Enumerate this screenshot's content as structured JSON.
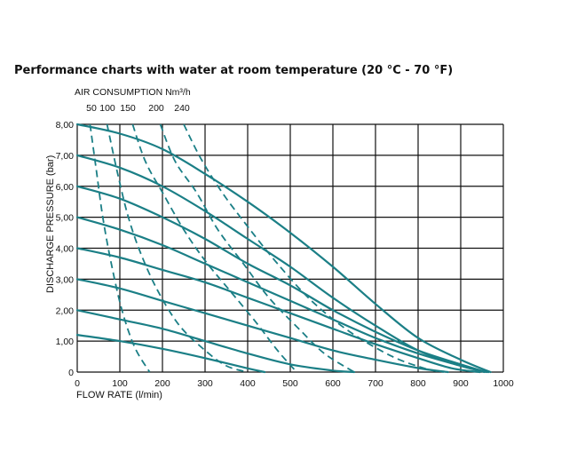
{
  "title": "Performance charts with water at room temperature (20 °C - 70 °F)",
  "colors": {
    "curve": "#1b7f86",
    "grid": "#111111",
    "text": "#111111"
  },
  "chart_data": {
    "type": "line",
    "xlabel": "FLOW RATE (l/min)",
    "ylabel": "DISCHARGE PRESSURE (bar)",
    "xlim": [
      0,
      1000
    ],
    "ylim": [
      0,
      8
    ],
    "x_ticks": [
      "0",
      "100",
      "200",
      "300",
      "400",
      "500",
      "600",
      "700",
      "800",
      "900",
      "1000"
    ],
    "y_ticks": [
      "0",
      "1,00",
      "2,00",
      "3,00",
      "4,00",
      "5,00",
      "6,00",
      "7,00",
      "8,00"
    ],
    "grid": true,
    "air_consumption": {
      "title": "AIR CONSUMPTION Nm³/h",
      "labels": [
        "50",
        "100",
        "150",
        "200",
        "240"
      ]
    },
    "pressure_curves": [
      {
        "values": [
          [
            0,
            8
          ],
          [
            100,
            7.7
          ],
          [
            200,
            7.2
          ],
          [
            300,
            6.4
          ],
          [
            400,
            5.5
          ],
          [
            500,
            4.5
          ],
          [
            600,
            3.4
          ],
          [
            700,
            2.2
          ],
          [
            800,
            1.1
          ],
          [
            900,
            0.4
          ],
          [
            970,
            0
          ]
        ]
      },
      {
        "values": [
          [
            0,
            7
          ],
          [
            100,
            6.6
          ],
          [
            200,
            6.0
          ],
          [
            300,
            5.2
          ],
          [
            400,
            4.3
          ],
          [
            500,
            3.4
          ],
          [
            600,
            2.4
          ],
          [
            700,
            1.5
          ],
          [
            800,
            0.7
          ],
          [
            900,
            0.2
          ],
          [
            965,
            0
          ]
        ]
      },
      {
        "values": [
          [
            0,
            6
          ],
          [
            100,
            5.6
          ],
          [
            200,
            5.0
          ],
          [
            300,
            4.3
          ],
          [
            400,
            3.5
          ],
          [
            500,
            2.8
          ],
          [
            600,
            2.0
          ],
          [
            700,
            1.3
          ],
          [
            800,
            0.7
          ],
          [
            900,
            0.25
          ],
          [
            960,
            0
          ]
        ]
      },
      {
        "values": [
          [
            0,
            5
          ],
          [
            100,
            4.6
          ],
          [
            200,
            4.1
          ],
          [
            300,
            3.5
          ],
          [
            400,
            2.9
          ],
          [
            500,
            2.3
          ],
          [
            600,
            1.7
          ],
          [
            700,
            1.1
          ],
          [
            800,
            0.6
          ],
          [
            900,
            0.2
          ],
          [
            955,
            0
          ]
        ]
      },
      {
        "values": [
          [
            0,
            4
          ],
          [
            100,
            3.7
          ],
          [
            200,
            3.3
          ],
          [
            300,
            2.9
          ],
          [
            400,
            2.4
          ],
          [
            500,
            1.9
          ],
          [
            600,
            1.4
          ],
          [
            700,
            0.9
          ],
          [
            800,
            0.45
          ],
          [
            880,
            0.12
          ],
          [
            945,
            0
          ]
        ]
      },
      {
        "values": [
          [
            0,
            3
          ],
          [
            100,
            2.7
          ],
          [
            200,
            2.3
          ],
          [
            300,
            1.9
          ],
          [
            400,
            1.5
          ],
          [
            500,
            1.1
          ],
          [
            600,
            0.7
          ],
          [
            700,
            0.4
          ],
          [
            800,
            0.13
          ],
          [
            870,
            0
          ]
        ]
      },
      {
        "values": [
          [
            0,
            2
          ],
          [
            100,
            1.7
          ],
          [
            200,
            1.4
          ],
          [
            300,
            1.0
          ],
          [
            400,
            0.6
          ],
          [
            500,
            0.25
          ],
          [
            600,
            0.05
          ],
          [
            650,
            0
          ]
        ]
      },
      {
        "values": [
          [
            0,
            1.2
          ],
          [
            100,
            1.0
          ],
          [
            200,
            0.75
          ],
          [
            300,
            0.45
          ],
          [
            400,
            0.12
          ],
          [
            440,
            0
          ]
        ]
      }
    ],
    "air_curves": [
      {
        "label": "50",
        "values": [
          [
            30,
            8
          ],
          [
            45,
            6.5
          ],
          [
            60,
            5.0
          ],
          [
            80,
            3.5
          ],
          [
            105,
            2.0
          ],
          [
            135,
            0.8
          ],
          [
            170,
            0
          ]
        ]
      },
      {
        "label": "100",
        "values": [
          [
            70,
            8
          ],
          [
            95,
            6.4
          ],
          [
            120,
            5.0
          ],
          [
            150,
            3.8
          ],
          [
            190,
            2.6
          ],
          [
            240,
            1.5
          ],
          [
            300,
            0.7
          ],
          [
            350,
            0.2
          ],
          [
            400,
            0
          ]
        ]
      },
      {
        "label": "150",
        "values": [
          [
            130,
            8
          ],
          [
            160,
            6.8
          ],
          [
            200,
            5.8
          ],
          [
            250,
            4.6
          ],
          [
            300,
            3.6
          ],
          [
            360,
            2.6
          ],
          [
            420,
            1.6
          ],
          [
            470,
            0.7
          ],
          [
            515,
            0
          ]
        ]
      },
      {
        "label": "200",
        "values": [
          [
            195,
            8
          ],
          [
            230,
            6.8
          ],
          [
            280,
            5.8
          ],
          [
            330,
            4.6
          ],
          [
            390,
            3.5
          ],
          [
            450,
            2.4
          ],
          [
            520,
            1.4
          ],
          [
            580,
            0.6
          ],
          [
            650,
            0
          ]
        ]
      },
      {
        "label": "240",
        "values": [
          [
            250,
            8
          ],
          [
            290,
            6.9
          ],
          [
            340,
            5.8
          ],
          [
            400,
            4.7
          ],
          [
            470,
            3.5
          ],
          [
            550,
            2.3
          ],
          [
            640,
            1.3
          ],
          [
            740,
            0.5
          ],
          [
            820,
            0.1
          ],
          [
            860,
            0
          ]
        ]
      }
    ]
  }
}
